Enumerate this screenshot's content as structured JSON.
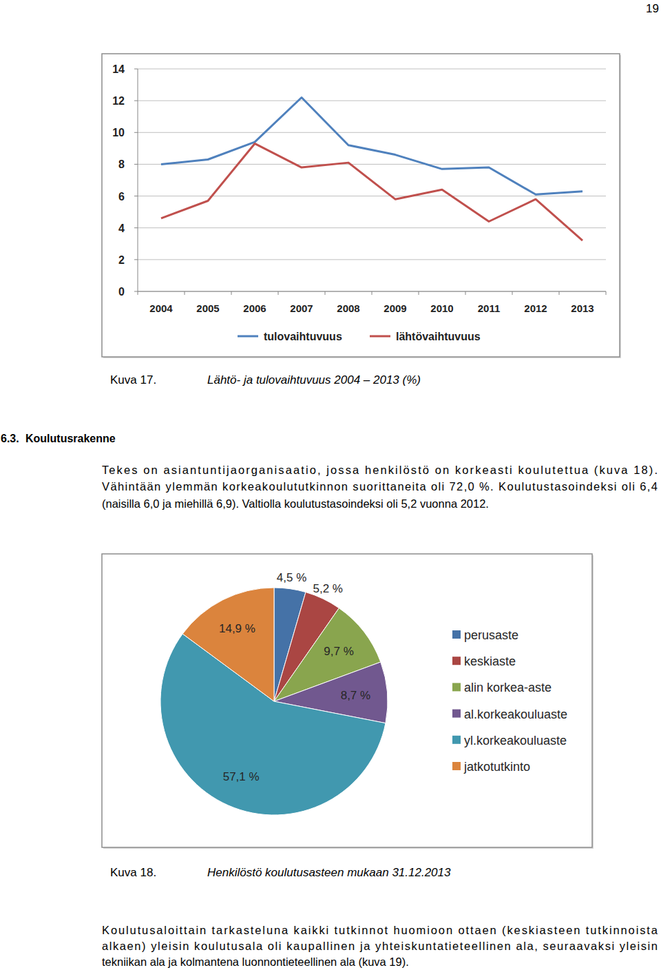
{
  "page_number": "19",
  "chart_data": [
    {
      "type": "line",
      "categories": [
        "2004",
        "2005",
        "2006",
        "2007",
        "2008",
        "2009",
        "2010",
        "2011",
        "2012",
        "2013"
      ],
      "series": [
        {
          "name": "tulovaihtuvuus",
          "color": "#4f81bd",
          "values": [
            8.0,
            8.3,
            9.4,
            12.2,
            9.2,
            8.6,
            7.7,
            7.8,
            6.1,
            6.3
          ]
        },
        {
          "name": "lähtövaihtuvuus",
          "color": "#c0504d",
          "values": [
            4.6,
            5.7,
            9.3,
            7.8,
            8.1,
            5.8,
            6.4,
            4.4,
            5.8,
            3.2
          ]
        }
      ],
      "ylim": [
        0,
        14
      ],
      "yticks": [
        0,
        2,
        4,
        6,
        8,
        10,
        12,
        14
      ],
      "grid": true,
      "legend": "bottom"
    },
    {
      "type": "pie",
      "categories": [
        "perusaste",
        "keskiaste",
        "alin korkea-aste",
        "al.korkeakouluaste",
        "yl.korkeakouluaste",
        "jatkotutkinto"
      ],
      "values": [
        4.5,
        5.2,
        9.7,
        8.7,
        57.1,
        14.9
      ],
      "value_labels": [
        "4,5 %",
        "5,2 %",
        "9,7 %",
        "8,7 %",
        "57,1 %",
        "14,9 %"
      ],
      "colors": [
        "#4572a7",
        "#aa4643",
        "#89a54e",
        "#71588f",
        "#4198af",
        "#db843d"
      ],
      "data_labels": true,
      "legend": "right"
    }
  ],
  "captions": [
    {
      "label": "Kuva 17.",
      "text": "Lähtö- ja tulovaihtuvuus 2004 – 2013 (%)"
    },
    {
      "label": "Kuva 18.",
      "text": "Henkilöstö koulutusasteen mukaan 31.12.2013"
    }
  ],
  "heading": {
    "number": "6.3.",
    "title": "Koulutusrakenne"
  },
  "paragraphs": [
    {
      "lines": [
        "Tekes on asiantuntijaorganisaatio, jossa henkilöstö on korkeasti koulutettua (kuva 18).",
        "Vähintään ylemmän korkeakoulututkinnon suorittaneita oli 72,0 %. Koulutustasoindeksi oli 6,4",
        "(naisilla 6,0 ja miehillä 6,9). Valtiolla koulutustasoindeksi oli 5,2 vuonna 2012."
      ]
    },
    {
      "lines": [
        "Koulutusaloittain tarkasteluna kaikki tutkinnot huomioon ottaen (keskiasteen tutkinnoista",
        "alkaen) yleisin koulutusala oli kaupallinen ja yhteiskuntatieteellinen ala, seuraavaksi yleisin",
        "tekniikan ala ja kolmantena luonnontieteellinen ala (kuva 19)."
      ]
    }
  ]
}
